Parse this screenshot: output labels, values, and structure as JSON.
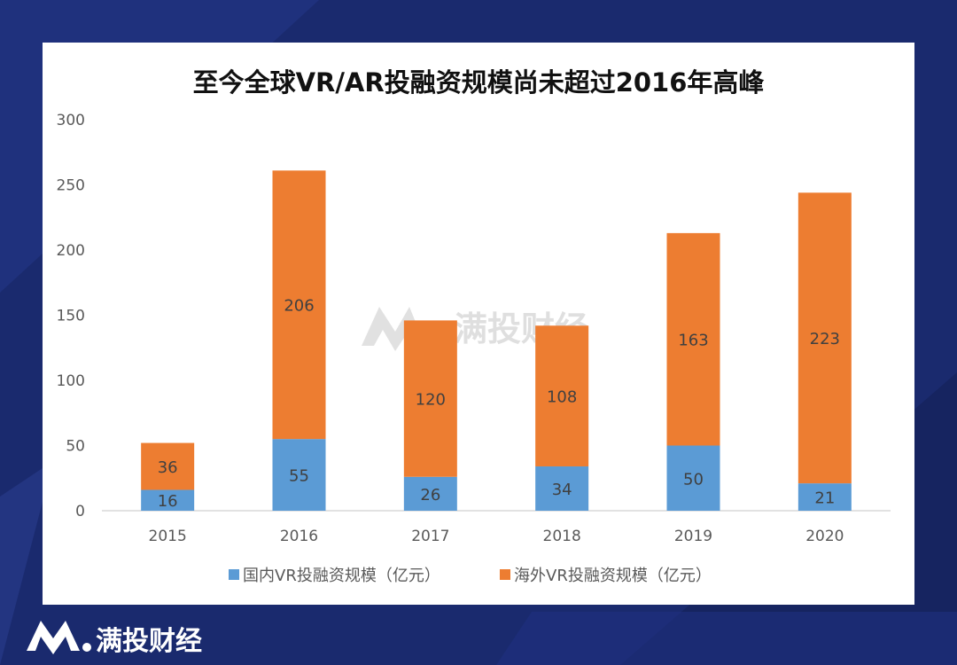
{
  "brand": {
    "name": "满投财经",
    "watermark": "满投财经"
  },
  "colors": {
    "domestic": "#5b9bd5",
    "overseas": "#ed7d31",
    "background": "#1a2a6e"
  },
  "chart_data": {
    "type": "bar",
    "stacked": true,
    "title": "至今全球VR/AR投融资规模尚未超过2016年高峰",
    "categories": [
      "2015",
      "2016",
      "2017",
      "2018",
      "2019",
      "2020"
    ],
    "series": [
      {
        "name": "国内VR投融资规模（亿元）",
        "values": [
          16,
          55,
          26,
          34,
          50,
          21
        ],
        "labels": [
          "16",
          "55",
          "26",
          "34",
          "50",
          "21"
        ]
      },
      {
        "name": "海外VR投融资规模（亿元）",
        "values": [
          36,
          206,
          120,
          108,
          163,
          223
        ],
        "labels": [
          "36",
          "206",
          "120",
          "108",
          "163",
          "223"
        ]
      }
    ],
    "ylim": [
      0,
      300
    ],
    "yticks": [
      "0",
      "50",
      "100",
      "150",
      "200",
      "250",
      "300"
    ],
    "xlabel": "",
    "ylabel": "",
    "legend": "bottom",
    "grid": false
  }
}
